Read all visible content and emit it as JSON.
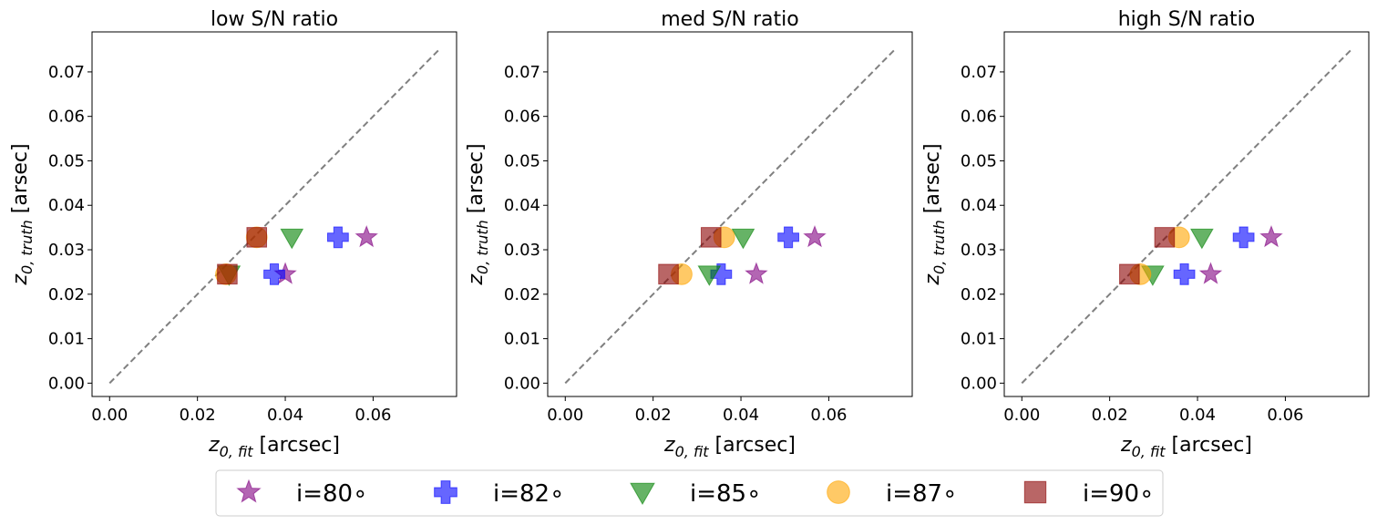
{
  "chart_data": [
    {
      "type": "scatter",
      "title": "low S/N ratio",
      "xlabel": "z0,fit [arcsec]",
      "ylabel": "z0,truth [arsec]",
      "xlim": [
        -0.004,
        0.079
      ],
      "ylim": [
        -0.003,
        0.079
      ],
      "xticks": [
        "0.00",
        "0.02",
        "0.04",
        "0.06"
      ],
      "yticks": [
        "0.00",
        "0.01",
        "0.02",
        "0.03",
        "0.04",
        "0.05",
        "0.06",
        "0.07"
      ],
      "diagonal": [
        0,
        0.075
      ],
      "series": [
        {
          "name": "i=80",
          "points": [
            [
              0.04,
              0.0245
            ],
            [
              0.0585,
              0.0328
            ]
          ]
        },
        {
          "name": "i=82",
          "points": [
            [
              0.0375,
              0.0245
            ],
            [
              0.052,
              0.0328
            ]
          ]
        },
        {
          "name": "i=85",
          "points": [
            [
              0.0272,
              0.0245
            ],
            [
              0.0415,
              0.0328
            ]
          ]
        },
        {
          "name": "i=87",
          "points": [
            [
              0.0265,
              0.0245
            ],
            [
              0.0335,
              0.0328
            ]
          ]
        },
        {
          "name": "i=90",
          "points": [
            [
              0.0268,
              0.0245
            ],
            [
              0.0335,
              0.0328
            ]
          ]
        }
      ]
    },
    {
      "type": "scatter",
      "title": "med S/N ratio",
      "xlabel": "z0,fit [arcsec]",
      "ylabel": "z0,truth [arsec]",
      "xlim": [
        -0.004,
        0.079
      ],
      "ylim": [
        -0.003,
        0.079
      ],
      "xticks": [
        "0.00",
        "0.02",
        "0.04",
        "0.06"
      ],
      "yticks": [
        "0.00",
        "0.01",
        "0.02",
        "0.03",
        "0.04",
        "0.05",
        "0.06",
        "0.07"
      ],
      "diagonal": [
        0,
        0.075
      ],
      "series": [
        {
          "name": "i=80",
          "points": [
            [
              0.0435,
              0.0245
            ],
            [
              0.0568,
              0.0328
            ]
          ]
        },
        {
          "name": "i=82",
          "points": [
            [
              0.0355,
              0.0245
            ],
            [
              0.0508,
              0.0328
            ]
          ]
        },
        {
          "name": "i=85",
          "points": [
            [
              0.0328,
              0.0245
            ],
            [
              0.0405,
              0.0328
            ]
          ]
        },
        {
          "name": "i=87",
          "points": [
            [
              0.0265,
              0.0245
            ],
            [
              0.0362,
              0.0328
            ]
          ]
        },
        {
          "name": "i=90",
          "points": [
            [
              0.0235,
              0.0245
            ],
            [
              0.0332,
              0.0328
            ]
          ]
        }
      ]
    },
    {
      "type": "scatter",
      "title": "high S/N ratio",
      "xlabel": "z0,fit [arcsec]",
      "ylabel": "z0,truth [arsec]",
      "xlim": [
        -0.004,
        0.079
      ],
      "ylim": [
        -0.003,
        0.079
      ],
      "xticks": [
        "0.00",
        "0.02",
        "0.04",
        "0.06"
      ],
      "yticks": [
        "0.00",
        "0.01",
        "0.02",
        "0.03",
        "0.04",
        "0.05",
        "0.06",
        "0.07"
      ],
      "diagonal": [
        0,
        0.075
      ],
      "series": [
        {
          "name": "i=80",
          "points": [
            [
              0.043,
              0.0245
            ],
            [
              0.0568,
              0.0328
            ]
          ]
        },
        {
          "name": "i=82",
          "points": [
            [
              0.037,
              0.0245
            ],
            [
              0.0505,
              0.0328
            ]
          ]
        },
        {
          "name": "i=85",
          "points": [
            [
              0.0298,
              0.0245
            ],
            [
              0.041,
              0.0328
            ]
          ]
        },
        {
          "name": "i=87",
          "points": [
            [
              0.027,
              0.0245
            ],
            [
              0.0358,
              0.0328
            ]
          ]
        },
        {
          "name": "i=90",
          "points": [
            [
              0.0245,
              0.0245
            ],
            [
              0.0325,
              0.0328
            ]
          ]
        }
      ]
    }
  ],
  "legend": {
    "placement": "bottom-center",
    "entries": [
      {
        "label": "i=80∘",
        "marker": "star",
        "color": "#800080"
      },
      {
        "label": "i=82∘",
        "marker": "plus",
        "color": "#0000ff"
      },
      {
        "label": "i=85∘",
        "marker": "triangle-down",
        "color": "#008000"
      },
      {
        "label": "i=87∘",
        "marker": "circle",
        "color": "#ffa500"
      },
      {
        "label": "i=90∘",
        "marker": "square",
        "color": "#8b0000"
      }
    ]
  },
  "colors": {
    "diagonal": "#808080",
    "axes": "#000000"
  }
}
